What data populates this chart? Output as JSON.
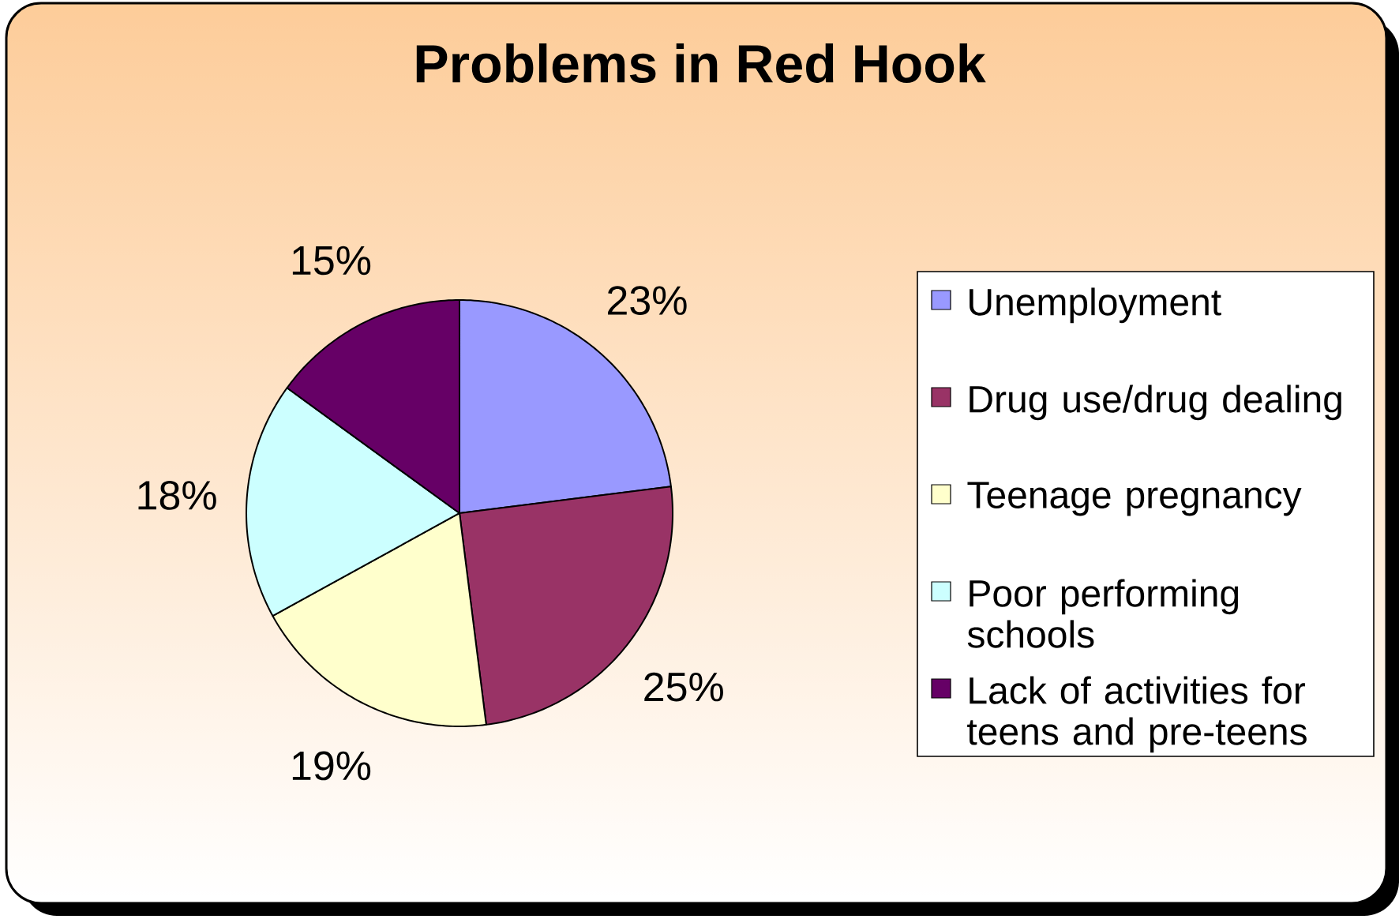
{
  "chart_data": {
    "type": "pie",
    "title": "Problems in Red Hook",
    "categories": [
      "Unemployment",
      "Drug use/drug dealing",
      "Teenage pregnancy",
      "Poor performing schools",
      "Lack of activities for teens and pre-teens"
    ],
    "values": [
      23,
      25,
      19,
      18,
      15
    ],
    "colors": [
      "#9999ff",
      "#993366",
      "#ffffcc",
      "#ccffff",
      "#660066"
    ],
    "value_labels": [
      "23%",
      "25%",
      "19%",
      "18%",
      "15%"
    ],
    "legend": "right"
  }
}
